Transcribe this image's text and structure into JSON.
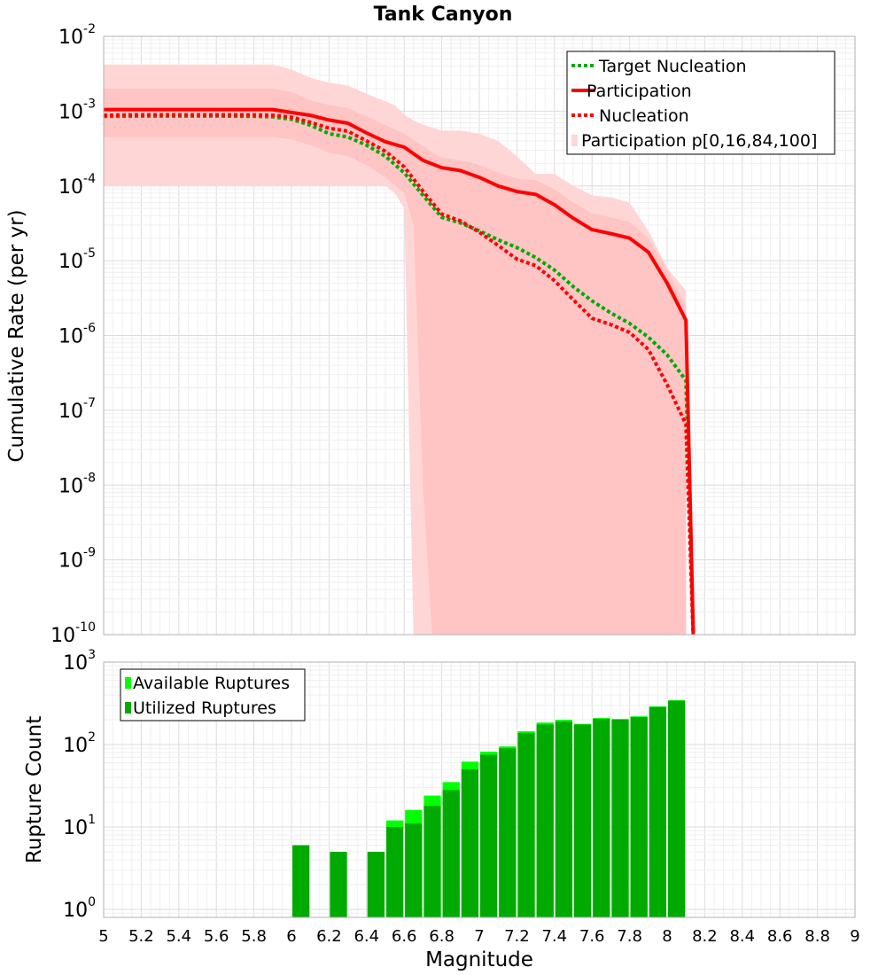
{
  "chart_data": [
    {
      "type": "line",
      "title": "Tank Canyon",
      "xlabel": "",
      "ylabel": "Cumulative Rate (per yr)",
      "xlim": [
        5,
        9
      ],
      "ylim": [
        1e-10,
        0.01
      ],
      "yscale": "log",
      "grid": true,
      "legend_position": "top-right",
      "y_ticks": [
        {
          "base": "10",
          "exp": "-10",
          "value": 1e-10
        },
        {
          "base": "10",
          "exp": "-9",
          "value": 1e-09
        },
        {
          "base": "10",
          "exp": "-8",
          "value": 1e-08
        },
        {
          "base": "10",
          "exp": "-7",
          "value": 1e-07
        },
        {
          "base": "10",
          "exp": "-6",
          "value": 1e-06
        },
        {
          "base": "10",
          "exp": "-5",
          "value": 1e-05
        },
        {
          "base": "10",
          "exp": "-4",
          "value": 0.0001
        },
        {
          "base": "10",
          "exp": "-3",
          "value": 0.001
        },
        {
          "base": "10",
          "exp": "-2",
          "value": 0.01
        }
      ],
      "legend": [
        {
          "label": "Target Nucleation",
          "style": "dotted-line",
          "color": "#00aa00"
        },
        {
          "label": "Participation",
          "style": "solid-line",
          "color": "#ff0000"
        },
        {
          "label": "Nucleation",
          "style": "dotted-line",
          "color": "#ff0000"
        },
        {
          "label": "Participation p[0,16,84,100]",
          "style": "band",
          "color": "#ffd6d6"
        }
      ],
      "series": [
        {
          "name": "Target Nucleation",
          "color": "#00aa00",
          "style": "dotted",
          "x": [
            5.0,
            5.2,
            5.4,
            5.6,
            5.8,
            5.9,
            6.0,
            6.1,
            6.2,
            6.3,
            6.4,
            6.5,
            6.6,
            6.7,
            6.8,
            6.9,
            7.0,
            7.1,
            7.2,
            7.3,
            7.4,
            7.5,
            7.6,
            7.7,
            7.8,
            7.9,
            8.0,
            8.1,
            8.14
          ],
          "y": [
            0.00085,
            0.00086,
            0.00086,
            0.00086,
            0.00085,
            0.00084,
            0.00078,
            0.00065,
            0.0005,
            0.00045,
            0.00035,
            0.00025,
            0.00015,
            7.5e-05,
            3.8e-05,
            3.2e-05,
            2.5e-05,
            1.9e-05,
            1.5e-05,
            1.1e-05,
            7.5e-06,
            4.5e-06,
            2.9e-06,
            2e-06,
            1.45e-06,
            9.5e-07,
            5.5e-07,
            2.5e-07,
            1e-10
          ]
        },
        {
          "name": "Participation",
          "color": "#ff0000",
          "style": "solid",
          "x": [
            5.0,
            5.2,
            5.4,
            5.6,
            5.8,
            5.9,
            6.0,
            6.1,
            6.2,
            6.3,
            6.4,
            6.5,
            6.6,
            6.7,
            6.8,
            6.9,
            7.0,
            7.1,
            7.2,
            7.3,
            7.4,
            7.5,
            7.6,
            7.7,
            7.8,
            7.9,
            8.0,
            8.1,
            8.14
          ],
          "y": [
            0.00105,
            0.00105,
            0.00105,
            0.00105,
            0.00105,
            0.00105,
            0.00096,
            0.00088,
            0.00076,
            0.00069,
            0.00051,
            0.00039,
            0.00033,
            0.00022,
            0.000175,
            0.00016,
            0.00013,
            0.0001,
            8.4e-05,
            7.7e-05,
            5.6e-05,
            3.7e-05,
            2.6e-05,
            2.3e-05,
            2e-05,
            1.3e-05,
            5e-06,
            1.6e-06,
            1e-10
          ]
        },
        {
          "name": "Nucleation",
          "color": "#ff0000",
          "style": "dotted",
          "x": [
            5.0,
            5.2,
            5.4,
            5.6,
            5.8,
            5.9,
            6.0,
            6.1,
            6.2,
            6.3,
            6.4,
            6.5,
            6.6,
            6.7,
            6.8,
            6.9,
            7.0,
            7.1,
            7.2,
            7.3,
            7.4,
            7.5,
            7.6,
            7.7,
            7.8,
            7.9,
            8.0,
            8.1,
            8.14
          ],
          "y": [
            0.00088,
            0.00089,
            0.00089,
            0.00089,
            0.00089,
            0.00088,
            0.00083,
            0.00071,
            0.00059,
            0.00054,
            0.0004,
            0.00029,
            0.00018,
            8.5e-05,
            4.2e-05,
            3.4e-05,
            2.4e-05,
            1.6e-05,
            1.05e-05,
            8.6e-06,
            5.4e-06,
            3e-06,
            1.7e-06,
            1.4e-06,
            1.1e-06,
            6.5e-07,
            2.2e-07,
            6.5e-08,
            1e-10
          ]
        }
      ],
      "bands": [
        {
          "name": "p[0,100]",
          "color": "#ffd6d6",
          "x": [
            5.0,
            5.2,
            5.4,
            5.6,
            5.8,
            5.9,
            6.0,
            6.1,
            6.2,
            6.3,
            6.4,
            6.5,
            6.55,
            6.6,
            6.65,
            6.7,
            6.8,
            6.9,
            7.0,
            7.1,
            7.2,
            7.3,
            7.4,
            7.5,
            7.6,
            7.7,
            7.8,
            7.9,
            8.0,
            8.1
          ],
          "upper": [
            0.0042,
            0.0042,
            0.0042,
            0.0042,
            0.0042,
            0.0042,
            0.0036,
            0.0028,
            0.0024,
            0.0022,
            0.0017,
            0.00135,
            0.0012,
            0.0009,
            0.00075,
            0.00066,
            0.00055,
            0.00055,
            0.0005,
            0.0004,
            0.00025,
            0.000145,
            0.000145,
            0.0001,
            7.5e-05,
            7e-05,
            6e-05,
            2.5e-05,
            8e-06,
            4e-06
          ],
          "lower": [
            0.0001,
            0.0001,
            0.0001,
            0.0001,
            0.0001,
            0.0001,
            0.0001,
            0.0001,
            0.0001,
            0.0001,
            0.0001,
            0.0001,
            8e-05,
            5e-05,
            1e-10,
            1e-10,
            1e-10,
            1e-10,
            1e-10,
            1e-10,
            1e-10,
            1e-10,
            1e-10,
            1e-10,
            1e-10,
            1e-10,
            1e-10,
            1e-10,
            1e-10,
            1e-10
          ]
        },
        {
          "name": "p[16,84]",
          "color": "#ffc4c4",
          "x": [
            5.0,
            5.2,
            5.4,
            5.6,
            5.8,
            5.9,
            6.0,
            6.1,
            6.2,
            6.3,
            6.4,
            6.5,
            6.6,
            6.65,
            6.7,
            6.75,
            6.8,
            6.9,
            7.0,
            7.1,
            7.2,
            7.3,
            7.4,
            7.5,
            7.6,
            7.7,
            7.8,
            7.9,
            8.0,
            8.1
          ],
          "upper": [
            0.002,
            0.002,
            0.002,
            0.002,
            0.002,
            0.002,
            0.0018,
            0.0014,
            0.0012,
            0.0011,
            0.00085,
            0.00065,
            0.0005,
            0.00041,
            0.00034,
            0.00028,
            0.00024,
            0.00022,
            0.00019,
            0.00015,
            0.000125,
            0.00012,
            9e-05,
            6e-05,
            4.3e-05,
            3.8e-05,
            3.3e-05,
            2e-05,
            7.5e-06,
            2.5e-06
          ],
          "lower": [
            0.00045,
            0.00045,
            0.00045,
            0.00045,
            0.00045,
            0.00045,
            0.00042,
            0.00035,
            0.00028,
            0.00025,
            0.00019,
            0.00013,
            8e-05,
            3e-05,
            1e-08,
            1e-10,
            1e-10,
            1e-10,
            1e-10,
            1e-10,
            1e-10,
            1e-10,
            1e-10,
            1e-10,
            1e-10,
            1e-10,
            1e-10,
            1e-10,
            1e-10,
            1e-10
          ]
        }
      ]
    },
    {
      "type": "bar",
      "title": "",
      "xlabel": "Magnitude",
      "ylabel": "Rupture Count",
      "xlim": [
        5,
        9
      ],
      "ylim": [
        0.8,
        1000
      ],
      "yscale": "log",
      "grid": true,
      "legend_position": "top-left",
      "x_ticks": [
        "5",
        "5.2",
        "5.4",
        "5.6",
        "5.8",
        "6",
        "6.2",
        "6.4",
        "6.6",
        "6.8",
        "7",
        "7.2",
        "7.4",
        "7.6",
        "7.8",
        "8",
        "8.2",
        "8.4",
        "8.6",
        "8.8",
        "9"
      ],
      "y_ticks": [
        {
          "base": "10",
          "exp": "0",
          "value": 1
        },
        {
          "base": "10",
          "exp": "1",
          "value": 10
        },
        {
          "base": "10",
          "exp": "2",
          "value": 100
        },
        {
          "base": "10",
          "exp": "3",
          "value": 1000
        }
      ],
      "legend": [
        {
          "label": "Available Ruptures",
          "color": "#00ff00"
        },
        {
          "label": "Utilized Ruptures",
          "color": "#00aa00"
        }
      ],
      "bin_width": 0.1,
      "series": [
        {
          "name": "Available Ruptures",
          "color": "#00ff00",
          "x": [
            6.05,
            6.25,
            6.45,
            6.55,
            6.65,
            6.75,
            6.85,
            6.95,
            7.05,
            7.15,
            7.25,
            7.35,
            7.45,
            7.55,
            7.65,
            7.75,
            7.85,
            7.95,
            8.05
          ],
          "values": [
            6,
            5,
            5,
            12,
            16,
            24,
            35,
            62,
            82,
            95,
            145,
            185,
            200,
            178,
            210,
            205,
            220,
            290,
            345
          ]
        },
        {
          "name": "Utilized Ruptures",
          "color": "#00aa00",
          "x": [
            6.05,
            6.25,
            6.45,
            6.55,
            6.65,
            6.75,
            6.85,
            6.95,
            7.05,
            7.15,
            7.25,
            7.35,
            7.45,
            7.55,
            7.65,
            7.75,
            7.85,
            7.95,
            8.05
          ],
          "values": [
            6,
            5,
            5,
            10,
            11,
            18,
            28,
            50,
            75,
            90,
            138,
            175,
            190,
            175,
            205,
            200,
            215,
            285,
            340
          ]
        }
      ]
    }
  ]
}
